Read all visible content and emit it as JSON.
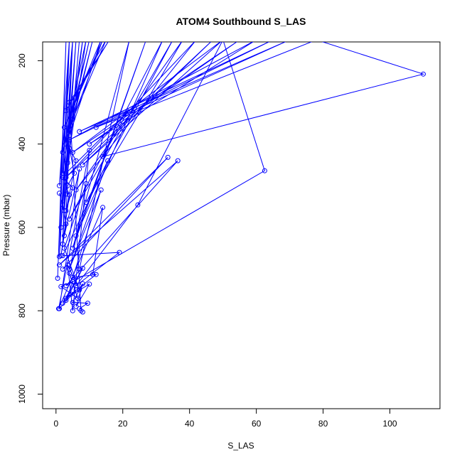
{
  "chart_data": {
    "type": "line",
    "title": "ATOM4 Southbound S_LAS",
    "xlabel": "S_LAS",
    "ylabel": "Pressure (mbar)",
    "xlim": [
      -4,
      115
    ],
    "ylim": [
      1035,
      155
    ],
    "y_reversed": true,
    "xticks": [
      0,
      20,
      40,
      60,
      80,
      100
    ],
    "yticks": [
      200,
      400,
      600,
      800,
      1000
    ],
    "grid": false,
    "colors": {
      "series": "#0000ff"
    },
    "series": [
      {
        "x": [
          0.5,
          3,
          1,
          5,
          2,
          4,
          1.5,
          6,
          2.5,
          7,
          3,
          5,
          1,
          4,
          2,
          8,
          3.5,
          9,
          2,
          10,
          3,
          11,
          4,
          13.5,
          2.5,
          14,
          5,
          15,
          3,
          16,
          4,
          7.5,
          8
        ],
        "y": [
          722,
          150,
          670,
          150,
          640,
          150,
          600,
          150,
          560,
          150,
          520,
          150,
          500,
          150,
          470,
          150,
          445,
          150,
          420,
          150,
          400,
          150,
          380,
          150,
          360,
          150,
          340,
          150,
          320,
          150,
          300,
          800,
          803
        ]
      },
      {
        "x": [
          7,
          22,
          5,
          27,
          6,
          32,
          4,
          35,
          9,
          38,
          6,
          42,
          3,
          47,
          8,
          50,
          5,
          55,
          10,
          60,
          4,
          65,
          7,
          70,
          12,
          78,
          110,
          14,
          21.5,
          3
        ],
        "y": [
          700,
          150,
          650,
          150,
          620,
          150,
          580,
          150,
          540,
          150,
          510,
          150,
          480,
          150,
          450,
          150,
          420,
          150,
          400,
          150,
          390,
          150,
          370,
          150,
          360,
          150,
          232,
          430,
          322,
          470
        ]
      },
      {
        "x": [
          2,
          33.5,
          1,
          36.5,
          3,
          62.5,
          50,
          24.5,
          6,
          19,
          2,
          15.5,
          4,
          13.5,
          5,
          12,
          3,
          10,
          6,
          8,
          5,
          9.5,
          7
        ],
        "y": [
          700,
          432,
          690,
          440,
          740,
          464,
          150,
          546,
          740,
          660,
          668,
          440,
          700,
          510,
          720,
          713,
          770,
          736,
          790,
          735,
          780,
          782,
          795
        ]
      },
      {
        "x": [
          1,
          2,
          3,
          1.5,
          4,
          2,
          5,
          3,
          6,
          4,
          5.5,
          3.5,
          2.5,
          7,
          1,
          6,
          4.5,
          2,
          8,
          3,
          5,
          1.5,
          6.5,
          4,
          9,
          2.5,
          7,
          3.5,
          5,
          10,
          0.8,
          14,
          11
        ],
        "y": [
          518,
          546,
          592,
          668,
          522,
          480,
          505,
          560,
          440,
          410,
          470,
          500,
          620,
          460,
          795,
          750,
          760,
          782,
          698,
          775,
          730,
          742,
          770,
          710,
          495,
          650,
          750,
          690,
          800,
          415,
          795,
          552,
          713
        ]
      }
    ]
  }
}
